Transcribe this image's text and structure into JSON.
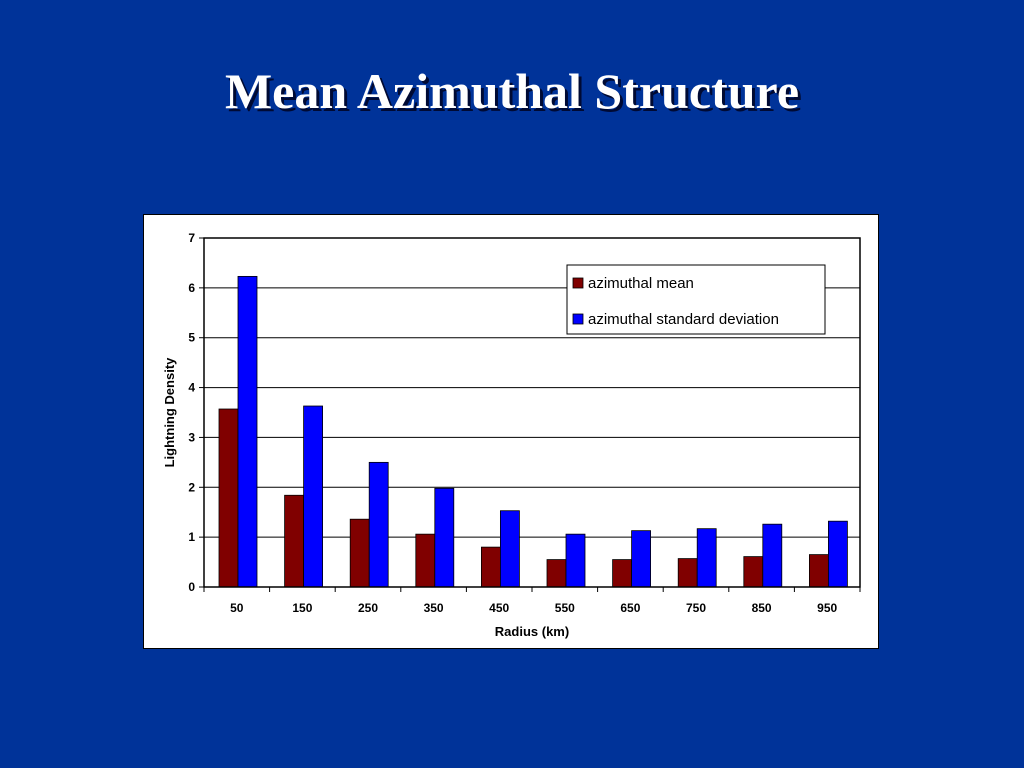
{
  "slide": {
    "title": "Mean Azimuthal Structure"
  },
  "chart_data": {
    "type": "bar",
    "title": "",
    "xlabel": "Radius (km)",
    "ylabel": "Lightning Density",
    "ylim": [
      0,
      7
    ],
    "yticks": [
      0,
      1,
      2,
      3,
      4,
      5,
      6,
      7
    ],
    "grid": true,
    "legend": "top-right",
    "categories": [
      "50",
      "150",
      "250",
      "350",
      "450",
      "550",
      "650",
      "750",
      "850",
      "950"
    ],
    "series": [
      {
        "name": "azimuthal mean",
        "color": "#800000",
        "values": [
          3.57,
          1.84,
          1.36,
          1.06,
          0.8,
          0.55,
          0.55,
          0.57,
          0.61,
          0.65
        ]
      },
      {
        "name": "azimuthal standard deviation",
        "color": "#0000ff",
        "values": [
          6.23,
          3.63,
          2.5,
          1.98,
          1.53,
          1.06,
          1.13,
          1.17,
          1.26,
          1.32
        ]
      }
    ]
  }
}
